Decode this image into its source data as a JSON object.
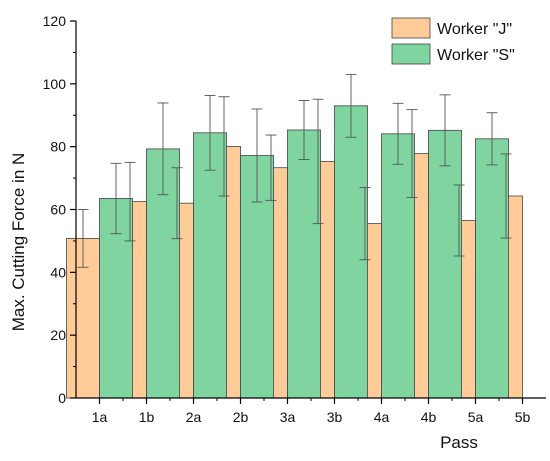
{
  "chart_data": {
    "type": "bar",
    "title": "",
    "xlabel": "Pass",
    "ylabel": "Max. Cutting Force in N",
    "ylim": [
      0,
      120
    ],
    "yticks": [
      0,
      20,
      40,
      60,
      80,
      100,
      120
    ],
    "categories": [
      "1a",
      "1b",
      "2a",
      "2b",
      "3a",
      "3b",
      "4a",
      "4b",
      "5a",
      "5b"
    ],
    "legend_position": "top-right",
    "grid": false,
    "error_bars": true,
    "series": [
      {
        "name": "Worker \"J\"",
        "color": "#FFCC99",
        "values": [
          50.8,
          62.5,
          62.0,
          80.1,
          73.3,
          75.3,
          55.5,
          77.8,
          56.5,
          64.3
        ],
        "errors": [
          9.2,
          12.5,
          11.3,
          15.8,
          10.4,
          19.8,
          11.5,
          14.0,
          11.3,
          13.4
        ]
      },
      {
        "name": "Worker \"S\"",
        "color": "#7FD4A0",
        "values": [
          63.5,
          79.3,
          84.4,
          77.2,
          85.3,
          93.0,
          84.1,
          85.2,
          82.5,
          null
        ],
        "errors": [
          11.2,
          14.6,
          11.9,
          14.8,
          9.4,
          10.0,
          9.7,
          11.3,
          8.3,
          null
        ]
      }
    ]
  }
}
